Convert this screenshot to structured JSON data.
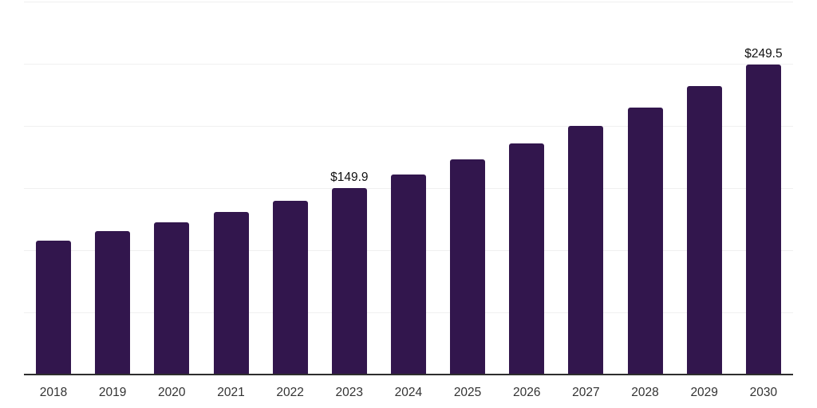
{
  "chart_data": {
    "type": "bar",
    "categories": [
      "2018",
      "2019",
      "2020",
      "2021",
      "2022",
      "2023",
      "2024",
      "2025",
      "2026",
      "2027",
      "2028",
      "2029",
      "2030"
    ],
    "values": [
      108.0,
      115.2,
      122.4,
      130.5,
      140.0,
      149.9,
      160.8,
      172.8,
      185.6,
      199.9,
      215.0,
      231.9,
      249.5
    ],
    "data_labels": {
      "2023": "$149.9",
      "2030": "$249.5"
    },
    "title": "",
    "xlabel": "",
    "ylabel": "",
    "ylim": [
      0,
      300
    ],
    "gridline_values": [
      50,
      100,
      150,
      200,
      250,
      300
    ],
    "grid": true,
    "legend": false,
    "colors": {
      "bar": "#32164d",
      "gridline": "#f0f0f0",
      "axis_line": "#2e2e2e",
      "tick_label": "#333333",
      "data_label": "#111111",
      "background": "#ffffff"
    }
  }
}
